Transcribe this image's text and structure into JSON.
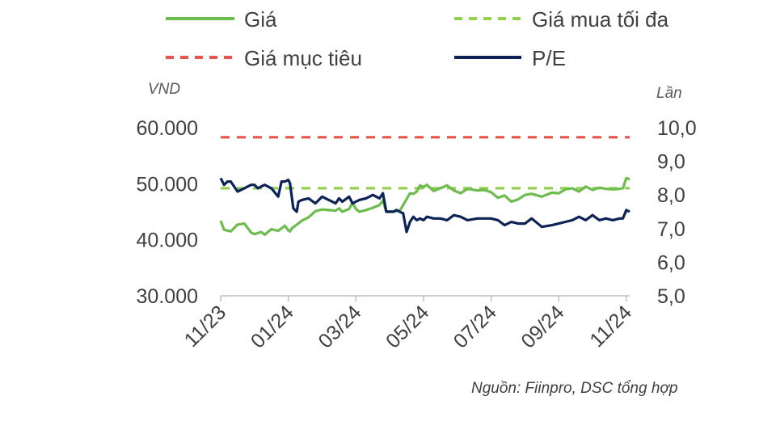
{
  "chart_data": {
    "type": "line",
    "legend": [
      {
        "name": "Giá",
        "color": "#6cbc4e",
        "style": "solid"
      },
      {
        "name": "Giá mua tối đa",
        "color": "#92d050",
        "style": "dashed"
      },
      {
        "name": "Giá mục tiêu",
        "color": "#e8534a",
        "style": "dashed"
      },
      {
        "name": "P/E",
        "color": "#0d2257",
        "style": "solid"
      }
    ],
    "y_left": {
      "unit": "VND",
      "ylim": [
        30000,
        60000
      ],
      "ticks": [
        "30.000",
        "40.000",
        "50.000",
        "60.000"
      ],
      "tick_values": [
        30000,
        40000,
        50000,
        60000
      ]
    },
    "y_right": {
      "unit": "Lần",
      "ylim": [
        5.0,
        10.0
      ],
      "ticks": [
        "5,0",
        "6,0",
        "7,0",
        "8,0",
        "9,0",
        "10,0"
      ],
      "tick_values": [
        5,
        6,
        7,
        8,
        9,
        10
      ]
    },
    "x_ticks": [
      "11/23",
      "01/24",
      "03/24",
      "05/24",
      "07/24",
      "09/24",
      "11/24"
    ],
    "x_tick_months": [
      0,
      2,
      4,
      6,
      8,
      10,
      12
    ],
    "x_range_months": [
      0,
      12.1
    ],
    "grid": false,
    "legend_position": "top",
    "source": "Nguồn: Fiinpro, DSC tổng hợp",
    "series": [
      {
        "name": "Giá",
        "axis": "left",
        "color": "#6cbc4e",
        "x": [
          0,
          0.1,
          0.3,
          0.5,
          0.7,
          0.9,
          1.0,
          1.2,
          1.3,
          1.5,
          1.7,
          1.9,
          2.0,
          2.05,
          2.1,
          2.4,
          2.6,
          2.8,
          3.0,
          3.2,
          3.4,
          3.5,
          3.6,
          3.8,
          3.9,
          4.0,
          4.1,
          4.3,
          4.5,
          4.7,
          4.8,
          4.9,
          5.0,
          5.1,
          5.2,
          5.3,
          5.4,
          5.6,
          5.7,
          5.8,
          5.9,
          6.0,
          6.1,
          6.3,
          6.5,
          6.7,
          6.9,
          7.1,
          7.3,
          7.6,
          7.8,
          8.0,
          8.2,
          8.4,
          8.6,
          8.8,
          9.0,
          9.2,
          9.5,
          9.8,
          10.0,
          10.2,
          10.4,
          10.6,
          10.8,
          11.0,
          11.2,
          11.4,
          11.6,
          11.8,
          11.9,
          12.0,
          12.1
        ],
        "y": [
          43400,
          41800,
          41500,
          42700,
          42900,
          41300,
          41000,
          41400,
          40900,
          41900,
          41600,
          42500,
          41700,
          41500,
          42000,
          43400,
          44000,
          45100,
          45400,
          45300,
          45200,
          45600,
          45000,
          45500,
          46600,
          45500,
          45000,
          45300,
          45700,
          46200,
          47000,
          45000,
          45100,
          45000,
          45100,
          45200,
          46200,
          48300,
          48200,
          48600,
          49700,
          49400,
          49800,
          48700,
          49200,
          49700,
          48800,
          48300,
          49100,
          48800,
          48900,
          48500,
          47500,
          47900,
          46800,
          47200,
          48000,
          48200,
          47700,
          48400,
          48300,
          49000,
          49200,
          48600,
          49500,
          48900,
          49300,
          49100,
          49000,
          49100,
          49200,
          51000,
          50800
        ]
      },
      {
        "name": "Giá mua tối đa",
        "axis": "left",
        "color": "#92d050",
        "x": [
          0,
          12.1
        ],
        "y": [
          49200,
          49200
        ]
      },
      {
        "name": "Giá mục tiêu",
        "axis": "left",
        "color": "#e8534a",
        "x": [
          0,
          12.1
        ],
        "y": [
          58300,
          58300
        ]
      },
      {
        "name": "P/E",
        "axis": "right",
        "color": "#0d2257",
        "x": [
          0,
          0.1,
          0.2,
          0.3,
          0.5,
          0.7,
          0.9,
          1.0,
          1.1,
          1.3,
          1.5,
          1.7,
          1.8,
          1.9,
          2.0,
          2.05,
          2.15,
          2.25,
          2.3,
          2.4,
          2.6,
          2.8,
          3.0,
          3.2,
          3.4,
          3.5,
          3.6,
          3.8,
          3.9,
          4.0,
          4.1,
          4.3,
          4.5,
          4.7,
          4.8,
          4.9,
          5.0,
          5.1,
          5.2,
          5.3,
          5.4,
          5.5,
          5.6,
          5.7,
          5.8,
          5.9,
          6.0,
          6.1,
          6.3,
          6.5,
          6.7,
          6.9,
          7.1,
          7.3,
          7.6,
          7.8,
          8.0,
          8.2,
          8.4,
          8.6,
          8.8,
          9.0,
          9.2,
          9.5,
          9.8,
          10.0,
          10.2,
          10.4,
          10.6,
          10.8,
          11.0,
          11.2,
          11.4,
          11.6,
          11.8,
          11.9,
          12.0,
          12.1
        ],
        "y": [
          8.5,
          8.3,
          8.4,
          8.4,
          8.1,
          8.2,
          8.3,
          8.3,
          8.2,
          8.3,
          8.2,
          7.95,
          8.4,
          8.4,
          8.45,
          8.35,
          7.6,
          7.5,
          7.8,
          7.85,
          7.9,
          7.75,
          7.95,
          7.85,
          7.75,
          7.9,
          7.8,
          7.95,
          7.75,
          7.8,
          7.85,
          7.9,
          8.0,
          7.9,
          8.05,
          7.5,
          7.5,
          7.5,
          7.55,
          7.5,
          7.45,
          6.9,
          7.2,
          7.35,
          7.25,
          7.3,
          7.25,
          7.35,
          7.3,
          7.3,
          7.25,
          7.4,
          7.35,
          7.25,
          7.3,
          7.3,
          7.3,
          7.25,
          7.1,
          7.2,
          7.15,
          7.15,
          7.3,
          7.05,
          7.1,
          7.15,
          7.2,
          7.25,
          7.35,
          7.25,
          7.4,
          7.25,
          7.3,
          7.25,
          7.3,
          7.3,
          7.55,
          7.5
        ]
      }
    ]
  }
}
